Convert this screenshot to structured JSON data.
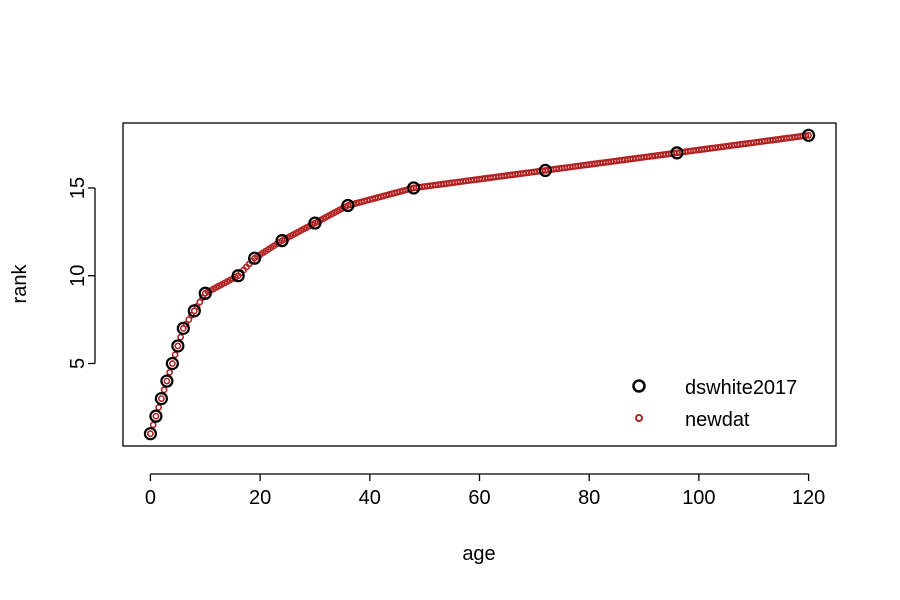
{
  "chart_data": {
    "type": "scatter",
    "title": "",
    "xlabel": "age",
    "ylabel": "rank",
    "xlim": [
      -5,
      125
    ],
    "ylim": [
      0.3,
      18.7
    ],
    "x_ticks": [
      0,
      20,
      40,
      60,
      80,
      100,
      120
    ],
    "y_ticks": [
      5,
      10,
      15
    ],
    "grid": false,
    "legend_position": "bottom-right",
    "series": [
      {
        "name": "dswhite2017",
        "marker": "open-circle",
        "color": "#000000",
        "x": [
          0,
          1,
          2,
          3,
          4,
          5,
          6,
          8,
          10,
          16,
          19,
          24,
          30,
          36,
          48,
          72,
          96,
          120
        ],
        "y": [
          1,
          2,
          3,
          4,
          5,
          6,
          7,
          8,
          9,
          10,
          11,
          12,
          13,
          14,
          15,
          16,
          17,
          18
        ]
      },
      {
        "name": "newdat",
        "marker": "small-open-circle",
        "color": "#b22222",
        "x_range": [
          0,
          120
        ],
        "x_step": 0.5,
        "interpolation": "linear between dswhite2017 points"
      }
    ]
  }
}
